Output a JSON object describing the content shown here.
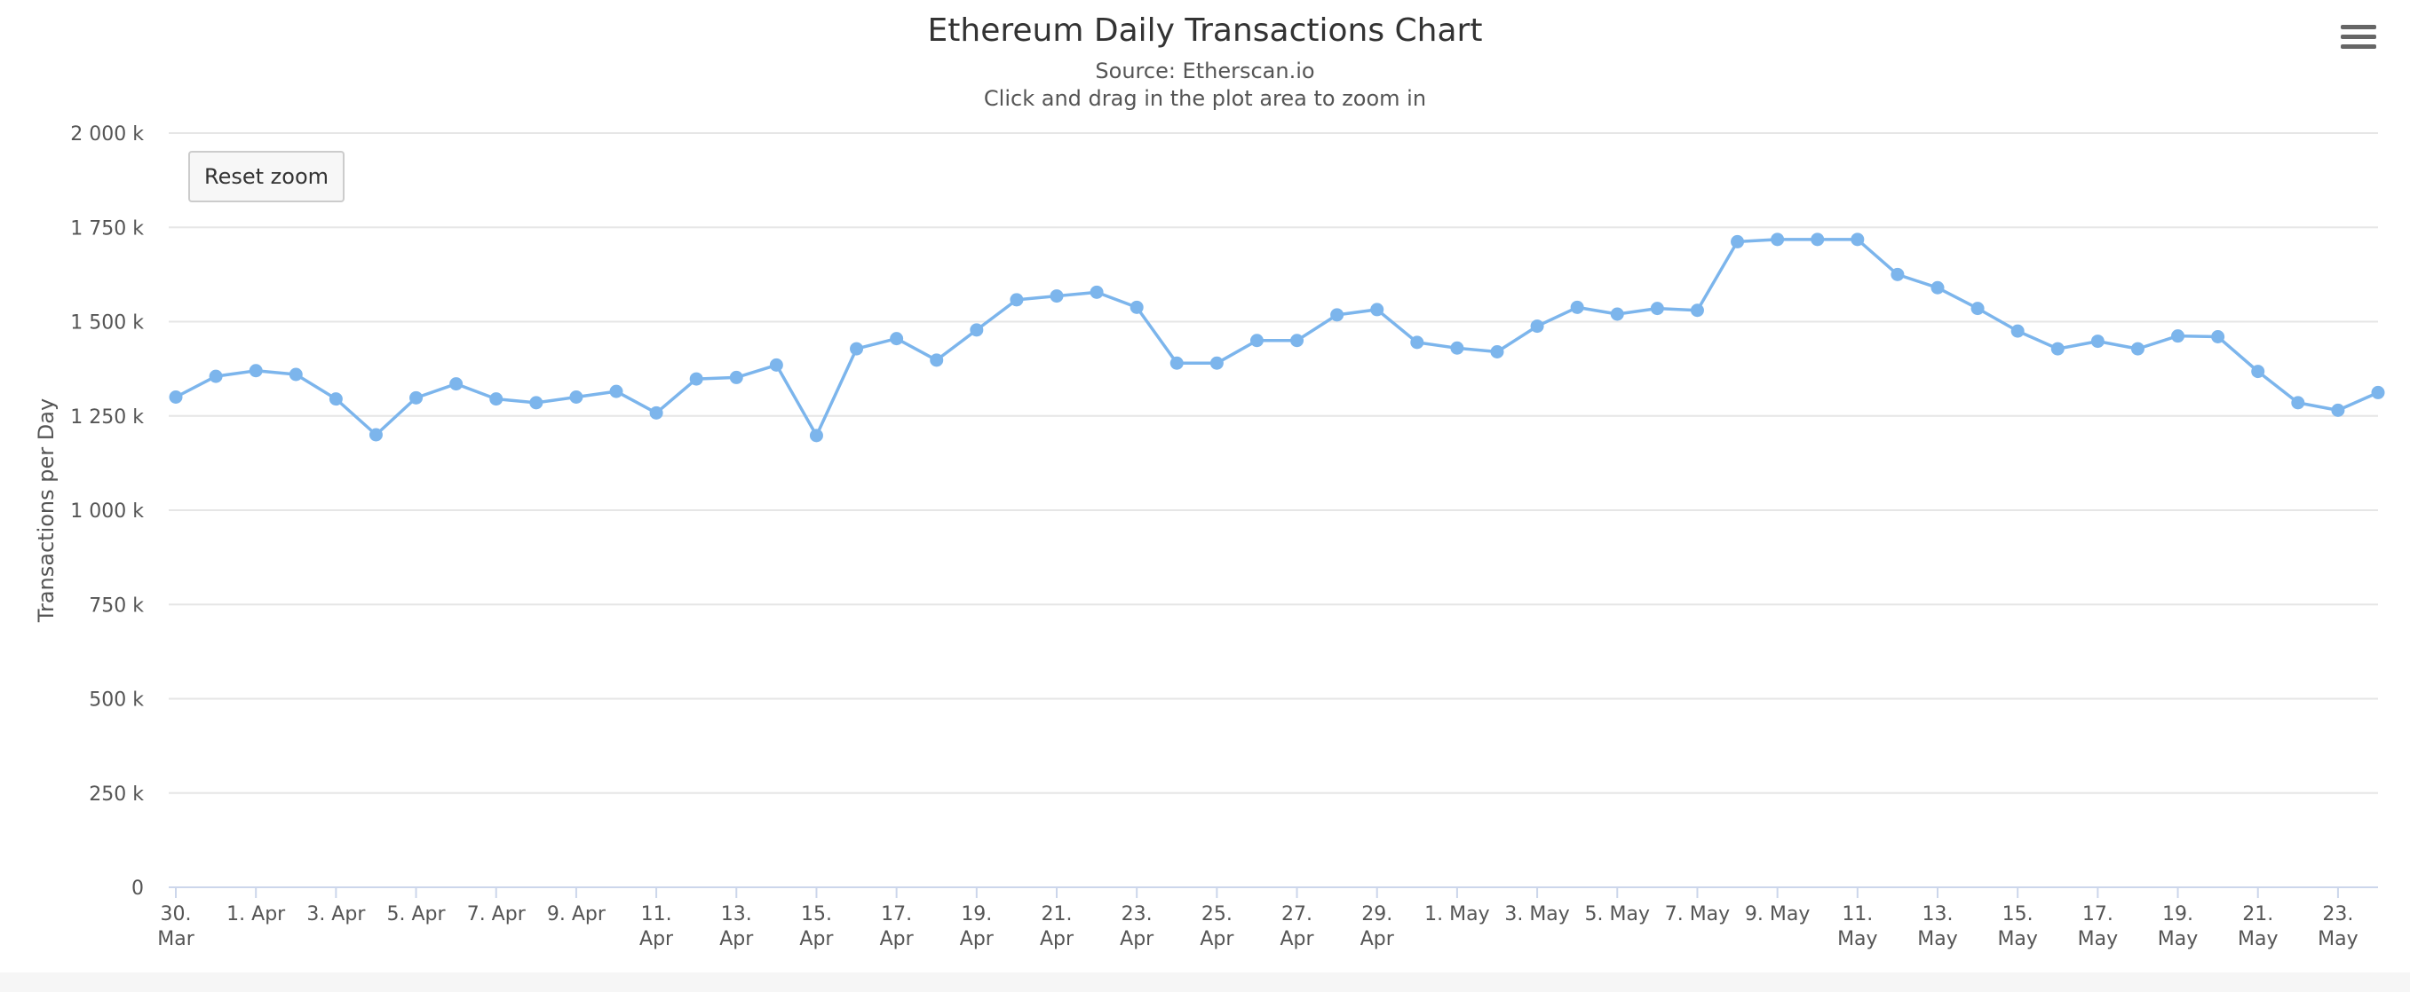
{
  "chart_data": {
    "type": "line",
    "title": "Ethereum Daily Transactions Chart",
    "subtitle": "Source: Etherscan.io",
    "instructions": "Click and drag in the plot area to zoom in",
    "ylabel": "Transactions per Day",
    "xlabel": "",
    "ylim": [
      0,
      2000000
    ],
    "y_ticks": [
      0,
      250000,
      500000,
      750000,
      1000000,
      1250000,
      1500000,
      1750000,
      2000000
    ],
    "y_tick_labels": [
      "0",
      "250 k",
      "500 k",
      "750 k",
      "1 000 k",
      "1 250 k",
      "1 500 k",
      "1 750 k",
      "2 000 k"
    ],
    "x_start": "2018-03-30",
    "x_tick_labels": [
      [
        "30.",
        "Mar"
      ],
      [
        "1. Apr"
      ],
      [
        "3. Apr"
      ],
      [
        "5. Apr"
      ],
      [
        "7. Apr"
      ],
      [
        "9. Apr"
      ],
      [
        "11.",
        "Apr"
      ],
      [
        "13.",
        "Apr"
      ],
      [
        "15.",
        "Apr"
      ],
      [
        "17.",
        "Apr"
      ],
      [
        "19.",
        "Apr"
      ],
      [
        "21.",
        "Apr"
      ],
      [
        "23.",
        "Apr"
      ],
      [
        "25.",
        "Apr"
      ],
      [
        "27.",
        "Apr"
      ],
      [
        "29.",
        "Apr"
      ],
      [
        "1. May"
      ],
      [
        "3. May"
      ],
      [
        "5. May"
      ],
      [
        "7. May"
      ],
      [
        "9. May"
      ],
      [
        "11.",
        "May"
      ],
      [
        "13.",
        "May"
      ],
      [
        "15.",
        "May"
      ],
      [
        "17.",
        "May"
      ],
      [
        "19.",
        "May"
      ],
      [
        "21.",
        "May"
      ],
      [
        "23.",
        "May"
      ]
    ],
    "grid": true,
    "legend": "none",
    "series": [
      {
        "color": "#7cb5ec",
        "x": [
          "2018-03-30",
          "2018-03-31",
          "2018-04-01",
          "2018-04-02",
          "2018-04-03",
          "2018-04-04",
          "2018-04-05",
          "2018-04-06",
          "2018-04-07",
          "2018-04-08",
          "2018-04-09",
          "2018-04-10",
          "2018-04-11",
          "2018-04-12",
          "2018-04-13",
          "2018-04-14",
          "2018-04-15",
          "2018-04-16",
          "2018-04-17",
          "2018-04-18",
          "2018-04-19",
          "2018-04-20",
          "2018-04-21",
          "2018-04-22",
          "2018-04-23",
          "2018-04-24",
          "2018-04-25",
          "2018-04-26",
          "2018-04-27",
          "2018-04-28",
          "2018-04-29",
          "2018-04-30",
          "2018-05-01",
          "2018-05-02",
          "2018-05-03",
          "2018-05-04",
          "2018-05-05",
          "2018-05-06",
          "2018-05-07",
          "2018-05-08",
          "2018-05-09",
          "2018-05-10",
          "2018-05-11",
          "2018-05-12",
          "2018-05-13",
          "2018-05-14",
          "2018-05-15",
          "2018-05-16",
          "2018-05-17",
          "2018-05-18",
          "2018-05-19",
          "2018-05-20",
          "2018-05-21",
          "2018-05-22",
          "2018-05-23",
          "2018-05-24"
        ],
        "values": [
          1300000,
          1355000,
          1370000,
          1360000,
          1295000,
          1200000,
          1298000,
          1335000,
          1295000,
          1285000,
          1300000,
          1315000,
          1258000,
          1348000,
          1352000,
          1385000,
          1198000,
          1428000,
          1455000,
          1398000,
          1478000,
          1558000,
          1568000,
          1578000,
          1538000,
          1390000,
          1390000,
          1450000,
          1450000,
          1518000,
          1532000,
          1445000,
          1430000,
          1420000,
          1488000,
          1538000,
          1520000,
          1535000,
          1530000,
          1712000,
          1718000,
          1718000,
          1718000,
          1625000,
          1590000,
          1535000,
          1475000,
          1428000,
          1448000,
          1428000,
          1462000,
          1460000,
          1368000,
          1285000,
          1265000,
          1312000
        ]
      }
    ]
  },
  "controls": {
    "reset_zoom_label": "Reset zoom",
    "menu_icon": "hamburger-menu-icon"
  }
}
